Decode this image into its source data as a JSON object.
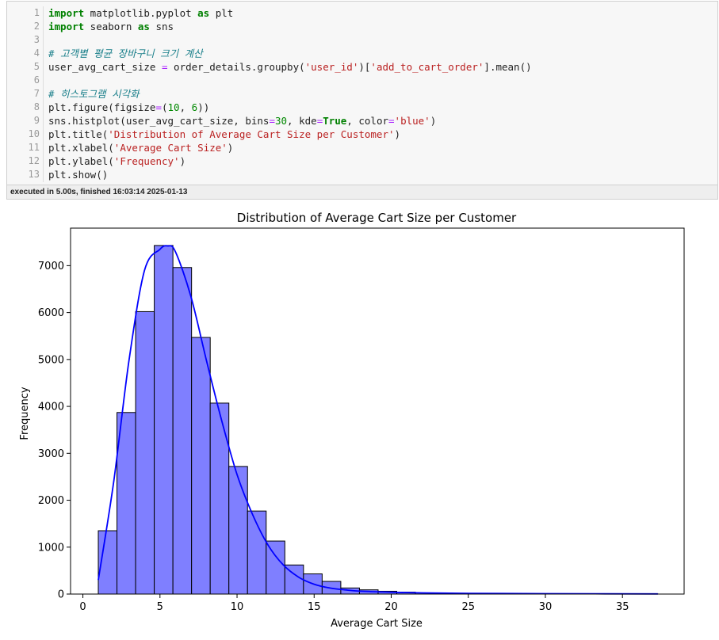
{
  "code_cell": {
    "line_numbers": [
      "1",
      "2",
      "3",
      "4",
      "5",
      "6",
      "7",
      "8",
      "9",
      "10",
      "11",
      "12",
      "13"
    ],
    "lines": [
      [
        {
          "t": "kw",
          "v": "import"
        },
        {
          "t": "tx",
          "v": " matplotlib.pyplot "
        },
        {
          "t": "kw",
          "v": "as"
        },
        {
          "t": "tx",
          "v": " plt"
        }
      ],
      [
        {
          "t": "kw",
          "v": "import"
        },
        {
          "t": "tx",
          "v": " seaborn "
        },
        {
          "t": "kw",
          "v": "as"
        },
        {
          "t": "tx",
          "v": " sns"
        }
      ],
      [],
      [
        {
          "t": "cm",
          "v": "# 고객별 평균 장바구니 크기 계산"
        }
      ],
      [
        {
          "t": "tx",
          "v": "user_avg_cart_size "
        },
        {
          "t": "op",
          "v": "="
        },
        {
          "t": "tx",
          "v": " order_details.groupby("
        },
        {
          "t": "st",
          "v": "'user_id'"
        },
        {
          "t": "tx",
          "v": ")["
        },
        {
          "t": "st",
          "v": "'add_to_cart_order'"
        },
        {
          "t": "tx",
          "v": "].mean()"
        }
      ],
      [],
      [
        {
          "t": "cm",
          "v": "# 히스토그램 시각화"
        }
      ],
      [
        {
          "t": "tx",
          "v": "plt.figure(figsize"
        },
        {
          "t": "op",
          "v": "="
        },
        {
          "t": "tx",
          "v": "("
        },
        {
          "t": "nm",
          "v": "10"
        },
        {
          "t": "tx",
          "v": ", "
        },
        {
          "t": "nm",
          "v": "6"
        },
        {
          "t": "tx",
          "v": "))"
        }
      ],
      [
        {
          "t": "tx",
          "v": "sns.histplot(user_avg_cart_size, bins"
        },
        {
          "t": "op",
          "v": "="
        },
        {
          "t": "nm",
          "v": "30"
        },
        {
          "t": "tx",
          "v": ", kde"
        },
        {
          "t": "op",
          "v": "="
        },
        {
          "t": "kw",
          "v": "True"
        },
        {
          "t": "tx",
          "v": ", color"
        },
        {
          "t": "op",
          "v": "="
        },
        {
          "t": "st",
          "v": "'blue'"
        },
        {
          "t": "tx",
          "v": ")"
        }
      ],
      [
        {
          "t": "tx",
          "v": "plt.title("
        },
        {
          "t": "st",
          "v": "'Distribution of Average Cart Size per Customer'"
        },
        {
          "t": "tx",
          "v": ")"
        }
      ],
      [
        {
          "t": "tx",
          "v": "plt.xlabel("
        },
        {
          "t": "st",
          "v": "'Average Cart Size'"
        },
        {
          "t": "tx",
          "v": ")"
        }
      ],
      [
        {
          "t": "tx",
          "v": "plt.ylabel("
        },
        {
          "t": "st",
          "v": "'Frequency'"
        },
        {
          "t": "tx",
          "v": ")"
        }
      ],
      [
        {
          "t": "tx",
          "v": "plt.show()"
        }
      ]
    ],
    "status": "executed in 5.00s, finished 16:03:14 2025-01-13"
  },
  "chart_data": {
    "type": "bar",
    "title": "Distribution of Average Cart Size per Customer",
    "xlabel": "Average Cart Size",
    "ylabel": "Frequency",
    "xlim": [
      -0.8,
      39.0
    ],
    "ylim": [
      0,
      7800
    ],
    "xticks": [
      0,
      5,
      10,
      15,
      20,
      25,
      30,
      35
    ],
    "yticks": [
      0,
      1000,
      2000,
      3000,
      4000,
      5000,
      6000,
      7000
    ],
    "bin_start": 1.0,
    "bin_width": 1.21,
    "bin_counts": [
      1350,
      3870,
      6020,
      7430,
      6960,
      5470,
      4070,
      2720,
      1770,
      1130,
      620,
      430,
      270,
      130,
      90,
      60,
      40,
      25,
      20,
      15,
      12,
      10,
      8,
      7,
      6,
      5,
      4,
      3,
      3,
      3
    ],
    "bar_color": "#7f7fff",
    "edge_color": "#000000",
    "kde": {
      "color": "#0000ff",
      "x": [
        1.0,
        2.0,
        3.0,
        4.0,
        5.0,
        5.5,
        6.0,
        7.0,
        8.0,
        9.0,
        10.0,
        11.0,
        12.0,
        13.0,
        14.0,
        15.0,
        16.0,
        17.0,
        18.0,
        20.0,
        22.0,
        25.0,
        30.0,
        37.3
      ],
      "y": [
        300,
        2400,
        5000,
        6900,
        7350,
        7420,
        7300,
        6350,
        5000,
        3700,
        2550,
        1700,
        1050,
        620,
        360,
        210,
        130,
        90,
        60,
        40,
        25,
        15,
        8,
        3
      ]
    }
  }
}
